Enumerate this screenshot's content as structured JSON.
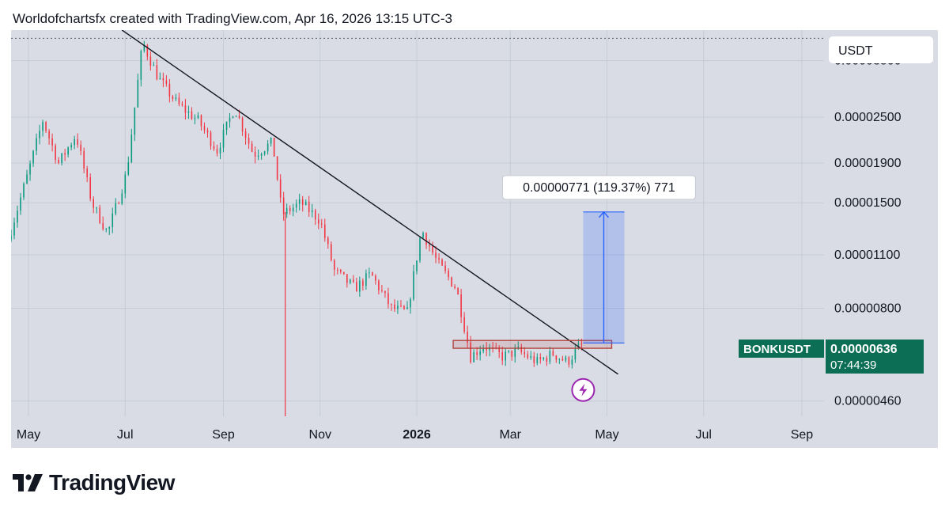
{
  "header": {
    "attribution": "Worldofchartsfx created with TradingView.com, Apr 16, 2026 13:15 UTC-3"
  },
  "currency_button": "USDT",
  "brand": {
    "name": "TradingView"
  },
  "colors": {
    "bg": "#d9dce4",
    "up": "#089981",
    "down": "#f23645",
    "trendline": "#131722",
    "measure": "#2962ff",
    "zone": "#b2443d",
    "tag": "#0b6e55"
  },
  "chart_data": {
    "type": "candlestick",
    "symbol_tag": "BONKUSDT",
    "last_price": "0.00000636",
    "countdown": "07:44:39",
    "y_scale": "log",
    "ylim": [
      4.2e-06,
      4.2e-05
    ],
    "y_ticks": [
      {
        "value": 3.5e-05,
        "label": "0.00003500"
      },
      {
        "value": 2.5e-05,
        "label": "0.00002500"
      },
      {
        "value": 1.9e-05,
        "label": "0.00001900"
      },
      {
        "value": 1.5e-05,
        "label": "0.00001500"
      },
      {
        "value": 1.1e-05,
        "label": "0.00001100"
      },
      {
        "value": 8e-06,
        "label": "0.00000800"
      },
      {
        "value": 4.6e-06,
        "label": "0.00000460"
      }
    ],
    "x_ticks": [
      {
        "label": "May",
        "date": "2025-05-01"
      },
      {
        "label": "Jul",
        "date": "2025-07-01"
      },
      {
        "label": "Sep",
        "date": "2025-09-01"
      },
      {
        "label": "Nov",
        "date": "2025-11-01"
      },
      {
        "label": "2026",
        "date": "2026-01-01",
        "bold": true
      },
      {
        "label": "Mar",
        "date": "2026-03-01"
      },
      {
        "label": "May",
        "date": "2026-05-01"
      },
      {
        "label": "Jul",
        "date": "2026-07-01"
      },
      {
        "label": "Sep",
        "date": "2026-09-01"
      }
    ],
    "xlim": [
      "2025-04-20",
      "2026-09-15"
    ],
    "grid": true,
    "trend_points": [
      [
        "2025-04-20",
        1.2e-05
      ],
      [
        "2025-05-02",
        1.75e-05
      ],
      [
        "2025-05-12",
        2.45e-05
      ],
      [
        "2025-05-22",
        1.9e-05
      ],
      [
        "2025-06-02",
        2.25e-05
      ],
      [
        "2025-06-12",
        1.5e-05
      ],
      [
        "2025-06-22",
        1.25e-05
      ],
      [
        "2025-07-04",
        1.8e-05
      ],
      [
        "2025-07-14",
        3.9e-05
      ],
      [
        "2025-07-24",
        3.15e-05
      ],
      [
        "2025-08-05",
        2.7e-05
      ],
      [
        "2025-08-18",
        2.45e-05
      ],
      [
        "2025-08-30",
        2.05e-05
      ],
      [
        "2025-09-10",
        2.65e-05
      ],
      [
        "2025-09-22",
        2e-05
      ],
      [
        "2025-10-04",
        2.15e-05
      ],
      [
        "2025-10-10",
        1.4e-05
      ],
      [
        "2025-10-22",
        1.5e-05
      ],
      [
        "2025-11-03",
        1.35e-05
      ],
      [
        "2025-11-12",
        1e-05
      ],
      [
        "2025-11-25",
        9e-06
      ],
      [
        "2025-12-05",
        9.8e-06
      ],
      [
        "2025-12-18",
        8e-06
      ],
      [
        "2025-12-28",
        7.8e-06
      ],
      [
        "2026-01-06",
        1.28e-05
      ],
      [
        "2026-01-16",
        1.05e-05
      ],
      [
        "2026-01-28",
        9e-06
      ],
      [
        "2026-02-06",
        6e-06
      ],
      [
        "2026-02-14",
        6.4e-06
      ],
      [
        "2026-02-26",
        6e-06
      ],
      [
        "2026-03-08",
        6.2e-06
      ],
      [
        "2026-03-20",
        5.8e-06
      ],
      [
        "2026-03-30",
        6.1e-06
      ],
      [
        "2026-04-08",
        5.8e-06
      ],
      [
        "2026-04-16",
        6.4e-06
      ]
    ],
    "annotations": {
      "high_dotted_line": {
        "value": 4e-05
      },
      "trendline": [
        [
          "2025-06-29",
          4.2e-05
        ],
        [
          "2026-05-08",
          5.4e-06
        ]
      ],
      "vertical_line": {
        "date": "2025-10-10"
      },
      "resistance_zone": {
        "from": "2026-01-24",
        "to": "2026-05-04",
        "low": 6.3e-06,
        "high": 6.6e-06
      },
      "measure": {
        "from": "2026-04-16",
        "to": "2026-05-12",
        "low": 6.5e-06,
        "high": 1.42e-05,
        "label": "0.00000771 (119.37%) 771"
      },
      "flash_icon": {
        "date": "2026-04-16",
        "value": 4.6e-06
      }
    }
  }
}
